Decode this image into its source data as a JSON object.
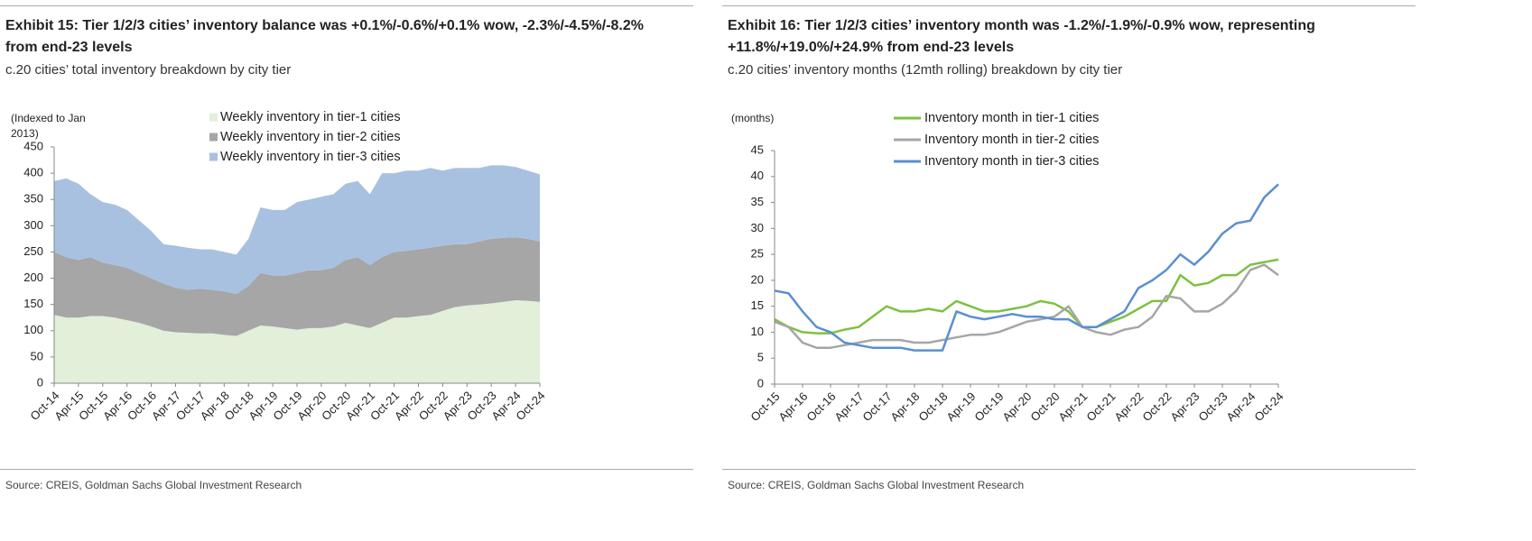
{
  "chart_data": [
    {
      "type": "area",
      "stacked": true,
      "title": "Exhibit 15: Tier 1/2/3 cities’ inventory balance was +0.1%/-0.6%/+0.1% wow, -2.3%/-4.5%/-8.2% from end-23 levels",
      "subtitle": "c.20 cities’ total inventory breakdown by city tier",
      "y_label": "(Indexed to Jan 2013)",
      "source": "Source: CREIS, Goldman Sachs Global Investment Research",
      "categories": [
        "Oct-14",
        null,
        "Apr-15",
        null,
        "Oct-15",
        null,
        "Apr-16",
        null,
        "Oct-16",
        null,
        "Apr-17",
        null,
        "Oct-17",
        null,
        "Apr-18",
        null,
        "Oct-18",
        null,
        "Apr-19",
        null,
        "Oct-19",
        null,
        "Apr-20",
        null,
        "Oct-20",
        null,
        "Apr-21",
        null,
        "Oct-21",
        null,
        "Apr-22",
        null,
        "Oct-22",
        null,
        "Apr-23",
        null,
        "Oct-23",
        null,
        "Apr-24",
        null,
        "Oct-24"
      ],
      "series": [
        {
          "name": "Weekly inventory in tier-1 cities",
          "color": "#e2efd9",
          "values": [
            130,
            125,
            125,
            128,
            128,
            125,
            120,
            115,
            108,
            100,
            97,
            96,
            95,
            95,
            92,
            90,
            100,
            110,
            108,
            105,
            102,
            105,
            105,
            108,
            115,
            110,
            105,
            115,
            125,
            125,
            128,
            130,
            138,
            145,
            148,
            150,
            152,
            155,
            158,
            157,
            155
          ]
        },
        {
          "name": "Weekly inventory in tier-2 cities",
          "color": "#a6a6a6",
          "values": [
            120,
            115,
            110,
            112,
            102,
            100,
            100,
            95,
            92,
            90,
            85,
            82,
            85,
            83,
            83,
            80,
            85,
            100,
            97,
            100,
            108,
            110,
            110,
            112,
            120,
            130,
            120,
            125,
            125,
            127,
            127,
            128,
            124,
            120,
            117,
            120,
            123,
            122,
            120,
            118,
            115
          ]
        },
        {
          "name": "Weekly inventory in tier-3 cities",
          "color": "#a9c1e0",
          "values": [
            135,
            150,
            145,
            120,
            115,
            115,
            110,
            100,
            90,
            75,
            80,
            80,
            75,
            77,
            75,
            75,
            90,
            125,
            125,
            125,
            135,
            135,
            140,
            140,
            145,
            145,
            135,
            160,
            150,
            153,
            150,
            152,
            143,
            145,
            145,
            140,
            140,
            138,
            134,
            130,
            128
          ]
        }
      ],
      "ylim": [
        0,
        450
      ],
      "yticks": [
        0,
        50,
        100,
        150,
        200,
        250,
        300,
        350,
        400,
        450
      ]
    },
    {
      "type": "line",
      "title": "Exhibit 16: Tier 1/2/3 cities’ inventory month was -1.2%/-1.9%/-0.9% wow, representing +11.8%/+19.0%/+24.9% from end-23 levels",
      "subtitle": "c.20 cities’ inventory months (12mth rolling) breakdown by city tier",
      "y_label": "(months)",
      "source": "Source: CREIS, Goldman Sachs Global Investment Research",
      "categories": [
        "Oct-15",
        null,
        "Apr-16",
        null,
        "Oct-16",
        null,
        "Apr-17",
        null,
        "Oct-17",
        null,
        "Apr-18",
        null,
        "Oct-18",
        null,
        "Apr-19",
        null,
        "Oct-19",
        null,
        "Apr-20",
        null,
        "Oct-20",
        null,
        "Apr-21",
        null,
        "Oct-21",
        null,
        "Apr-22",
        null,
        "Oct-22",
        null,
        "Apr-23",
        null,
        "Oct-23",
        null,
        "Apr-24",
        null,
        "Oct-24"
      ],
      "series": [
        {
          "name": "Inventory month in tier-1 cities",
          "color": "#7dc142",
          "values": [
            12.5,
            11,
            10,
            9.8,
            9.8,
            10.5,
            11,
            13,
            15,
            14,
            14,
            14.5,
            14,
            16,
            15,
            14,
            14,
            14.5,
            15,
            16,
            15.5,
            14,
            11,
            11,
            12,
            13,
            14.5,
            16,
            16,
            21,
            19,
            19.5,
            21,
            21,
            23,
            23.5,
            24
          ]
        },
        {
          "name": "Inventory month in tier-2 cities",
          "color": "#a6a6a6",
          "values": [
            12,
            11,
            8,
            7,
            7,
            7.5,
            8,
            8.5,
            8.5,
            8.5,
            8,
            8,
            8.5,
            9,
            9.5,
            9.5,
            10,
            11,
            12,
            12.5,
            13,
            15,
            11,
            10,
            9.5,
            10.5,
            11,
            13,
            17,
            16.5,
            14,
            14,
            15.5,
            18,
            22,
            23,
            21
          ]
        },
        {
          "name": "Inventory month in tier-3 cities",
          "color": "#5a8fd2",
          "values": [
            18,
            17.5,
            14,
            11,
            10,
            8,
            7.5,
            7,
            7,
            7,
            6.5,
            6.5,
            6.5,
            14,
            13,
            12.5,
            13,
            13.5,
            13,
            13,
            12.5,
            12.5,
            11,
            11,
            12.5,
            14,
            18.5,
            20,
            22,
            25,
            23,
            25.5,
            29,
            31,
            31.5,
            36,
            38.5
          ]
        }
      ],
      "ylim": [
        0,
        45
      ],
      "yticks": [
        0,
        5,
        10,
        15,
        20,
        25,
        30,
        35,
        40,
        45
      ]
    }
  ]
}
